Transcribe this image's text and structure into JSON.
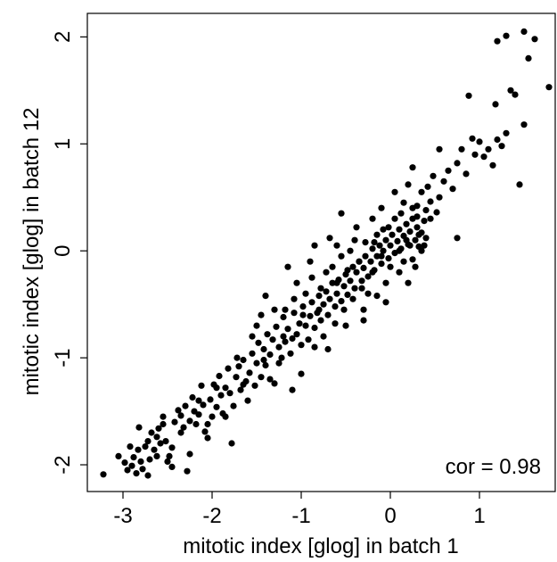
{
  "chart_data": {
    "type": "scatter",
    "title": "",
    "xlabel": "mitotic index [glog] in batch 1",
    "ylabel": "mitotic index [glog] in batch 12",
    "xlim": [
      -3.4,
      1.85
    ],
    "ylim": [
      -2.25,
      2.22
    ],
    "xticks": [
      -3,
      -2,
      -1,
      0,
      1
    ],
    "yticks": [
      -2,
      -1,
      0,
      1,
      2
    ],
    "xtick_labels": [
      "-3",
      "-2",
      "-1",
      "0",
      "1"
    ],
    "ytick_labels": [
      "-2",
      "-1",
      "0",
      "1",
      "2"
    ],
    "annotation": "cor = 0.98",
    "grid": false,
    "marker_color": "#000000",
    "points": [
      [
        -3.22,
        -2.09
      ],
      [
        -3.05,
        -1.92
      ],
      [
        -2.98,
        -1.98
      ],
      [
        -2.95,
        -2.05
      ],
      [
        -2.92,
        -1.83
      ],
      [
        -2.9,
        -2.01
      ],
      [
        -2.88,
        -1.93
      ],
      [
        -2.85,
        -2.08
      ],
      [
        -2.83,
        -1.86
      ],
      [
        -2.8,
        -1.97
      ],
      [
        -2.78,
        -2.04
      ],
      [
        -2.75,
        -1.83
      ],
      [
        -2.72,
        -1.78
      ],
      [
        -2.7,
        -1.95
      ],
      [
        -2.68,
        -1.7
      ],
      [
        -2.65,
        -1.86
      ],
      [
        -2.62,
        -1.74
      ],
      [
        -2.6,
        -1.66
      ],
      [
        -2.58,
        -1.8
      ],
      [
        -2.55,
        -1.62
      ],
      [
        -2.52,
        -1.78
      ],
      [
        -2.5,
        -1.97
      ],
      [
        -2.48,
        -1.92
      ],
      [
        -2.45,
        -1.84
      ],
      [
        -2.42,
        -1.6
      ],
      [
        -2.38,
        -1.49
      ],
      [
        -2.35,
        -1.54
      ],
      [
        -2.32,
        -1.65
      ],
      [
        -2.3,
        -1.45
      ],
      [
        -2.28,
        -2.06
      ],
      [
        -2.25,
        -1.59
      ],
      [
        -2.22,
        -1.37
      ],
      [
        -2.2,
        -1.5
      ],
      [
        -2.18,
        -1.62
      ],
      [
        -2.15,
        -1.53
      ],
      [
        -2.12,
        -1.26
      ],
      [
        -2.1,
        -1.44
      ],
      [
        -2.08,
        -1.69
      ],
      [
        -2.05,
        -1.62
      ],
      [
        -2.02,
        -1.39
      ],
      [
        -2.0,
        -1.55
      ],
      [
        -1.98,
        -1.25
      ],
      [
        -1.95,
        -1.46
      ],
      [
        -1.92,
        -1.17
      ],
      [
        -1.9,
        -1.35
      ],
      [
        -1.88,
        -1.52
      ],
      [
        -1.85,
        -1.28
      ],
      [
        -1.82,
        -1.1
      ],
      [
        -1.8,
        -1.33
      ],
      [
        -1.78,
        -1.8
      ],
      [
        -1.76,
        -1.45
      ],
      [
        -1.73,
        -1.18
      ],
      [
        -1.7,
        -1.08
      ],
      [
        -1.68,
        -1.3
      ],
      [
        -1.65,
        -1.02
      ],
      [
        -1.62,
        -1.22
      ],
      [
        -1.6,
        -1.4
      ],
      [
        -1.58,
        -1.14
      ],
      [
        -1.55,
        -0.96
      ],
      [
        -1.52,
        -1.26
      ],
      [
        -1.5,
        -1.05
      ],
      [
        -1.48,
        -0.86
      ],
      [
        -1.45,
        -1.18
      ],
      [
        -1.42,
        -0.92
      ],
      [
        -1.4,
        -1.07
      ],
      [
        -1.38,
        -0.78
      ],
      [
        -1.35,
        -0.97
      ],
      [
        -1.32,
        -0.83
      ],
      [
        -1.3,
        -1.24
      ],
      [
        -1.28,
        -0.71
      ],
      [
        -1.25,
        -0.9
      ],
      [
        -1.22,
        -1.0
      ],
      [
        -1.2,
        -0.62
      ],
      [
        -1.18,
        -0.85
      ],
      [
        -1.15,
        -0.73
      ],
      [
        -1.12,
        -0.96
      ],
      [
        -1.1,
        -0.82
      ],
      [
        -1.08,
        -0.58
      ],
      [
        -1.05,
        -0.78
      ],
      [
        -1.02,
        -0.68
      ],
      [
        -1.0,
        -0.88
      ],
      [
        -0.98,
        -0.52
      ],
      [
        -0.95,
        -0.7
      ],
      [
        -0.92,
        -0.83
      ],
      [
        -0.9,
        -0.61
      ],
      [
        -0.88,
        -0.48
      ],
      [
        -0.85,
        -0.72
      ],
      [
        -0.82,
        -0.58
      ],
      [
        -0.8,
        -0.42
      ],
      [
        -0.78,
        -0.65
      ],
      [
        -0.75,
        -0.5
      ],
      [
        -0.72,
        -0.38
      ],
      [
        -0.7,
        -0.6
      ],
      [
        -0.68,
        -0.45
      ],
      [
        -0.65,
        -0.3
      ],
      [
        -0.62,
        -0.52
      ],
      [
        -0.6,
        -0.4
      ],
      [
        -0.58,
        -0.27
      ],
      [
        -0.55,
        -0.47
      ],
      [
        -0.52,
        -0.33
      ],
      [
        -0.5,
        -0.22
      ],
      [
        -0.48,
        -0.41
      ],
      [
        -0.45,
        -0.28
      ],
      [
        -0.42,
        -0.15
      ],
      [
        -0.4,
        -0.35
      ],
      [
        -0.38,
        -0.2
      ],
      [
        -0.35,
        -0.1
      ],
      [
        -0.32,
        -0.28
      ],
      [
        -0.3,
        -0.16
      ],
      [
        -0.28,
        -0.05
      ],
      [
        -0.25,
        -0.24
      ],
      [
        -0.22,
        -0.1
      ],
      [
        -0.2,
        0.02
      ],
      [
        -0.18,
        -0.18
      ],
      [
        -0.15,
        -0.05
      ],
      [
        -0.12,
        0.05
      ],
      [
        -0.1,
        -0.12
      ],
      [
        -0.08,
        0.0
      ],
      [
        -0.05,
        0.1
      ],
      [
        -0.02,
        -0.07
      ],
      [
        0.0,
        0.05
      ],
      [
        0.02,
        0.15
      ],
      [
        0.05,
        -0.02
      ],
      [
        0.08,
        0.09
      ],
      [
        0.1,
        0.2
      ],
      [
        0.12,
        0.02
      ],
      [
        0.15,
        0.14
      ],
      [
        0.18,
        0.25
      ],
      [
        0.2,
        0.06
      ],
      [
        0.22,
        0.18
      ],
      [
        0.25,
        0.3
      ],
      [
        0.28,
        0.1
      ],
      [
        0.3,
        0.22
      ],
      [
        0.32,
        0.04
      ],
      [
        0.35,
        0.17
      ],
      [
        0.38,
        0.28
      ],
      [
        0.4,
        0.12
      ],
      [
        -0.95,
        -0.4
      ],
      [
        -0.72,
        -0.2
      ],
      [
        -0.55,
        -0.05
      ],
      [
        -0.4,
        0.1
      ],
      [
        -0.6,
        0.05
      ],
      [
        -0.2,
        0.3
      ],
      [
        0.05,
        0.55
      ],
      [
        -0.1,
        0.4
      ],
      [
        -0.7,
        -0.92
      ],
      [
        -0.5,
        -0.7
      ],
      [
        -0.3,
        -0.55
      ],
      [
        -0.15,
        -0.42
      ],
      [
        0.1,
        -0.2
      ],
      [
        0.25,
        -0.08
      ],
      [
        -1.05,
        -0.3
      ],
      [
        -1.4,
        -0.42
      ],
      [
        -1.45,
        -0.6
      ],
      [
        -1.15,
        -0.15
      ],
      [
        -0.85,
        0.05
      ],
      [
        -0.55,
        0.35
      ],
      [
        0.15,
        0.45
      ],
      [
        0.2,
        0.62
      ],
      [
        0.25,
        0.78
      ],
      [
        0.3,
        0.42
      ],
      [
        0.35,
        0.55
      ],
      [
        0.42,
        0.6
      ],
      [
        0.45,
        0.46
      ],
      [
        0.48,
        0.7
      ],
      [
        0.52,
        0.36
      ],
      [
        0.55,
        0.5
      ],
      [
        0.6,
        0.65
      ],
      [
        0.65,
        0.75
      ],
      [
        0.7,
        0.58
      ],
      [
        0.75,
        0.82
      ],
      [
        0.8,
        0.95
      ],
      [
        0.85,
        0.72
      ],
      [
        0.88,
        1.45
      ],
      [
        0.92,
        1.05
      ],
      [
        0.95,
        0.9
      ],
      [
        1.0,
        1.02
      ],
      [
        1.05,
        0.88
      ],
      [
        1.1,
        0.95
      ],
      [
        1.15,
        0.8
      ],
      [
        1.18,
        1.37
      ],
      [
        1.2,
        1.04
      ],
      [
        1.25,
        0.98
      ],
      [
        1.3,
        1.1
      ],
      [
        1.35,
        1.5
      ],
      [
        1.4,
        1.46
      ],
      [
        1.45,
        0.62
      ],
      [
        1.5,
        1.18
      ],
      [
        1.55,
        1.8
      ],
      [
        1.2,
        1.96
      ],
      [
        1.3,
        2.01
      ],
      [
        1.5,
        2.05
      ],
      [
        1.62,
        1.98
      ],
      [
        1.78,
        1.53
      ],
      [
        0.75,
        0.12
      ],
      [
        0.55,
        0.95
      ],
      [
        0.45,
        0.3
      ],
      [
        0.15,
        -0.1
      ],
      [
        -0.05,
        -0.3
      ],
      [
        -0.25,
        -0.4
      ],
      [
        -0.35,
        -0.1
      ],
      [
        -0.45,
        0.0
      ],
      [
        -0.15,
        0.15
      ],
      [
        0.05,
        0.3
      ],
      [
        0.25,
        0.4
      ],
      [
        0.35,
        0.0
      ],
      [
        0.28,
        -0.15
      ],
      [
        0.0,
        -0.15
      ],
      [
        -0.08,
        0.2
      ],
      [
        -0.28,
        0.08
      ],
      [
        -0.48,
        -0.18
      ],
      [
        -0.65,
        -0.15
      ],
      [
        -0.78,
        -0.35
      ],
      [
        -0.88,
        -0.25
      ],
      [
        -0.98,
        -0.6
      ],
      [
        -1.08,
        -0.45
      ],
      [
        -1.2,
        -0.8
      ],
      [
        -1.3,
        -0.55
      ],
      [
        -1.42,
        -1.02
      ],
      [
        -1.55,
        -0.8
      ],
      [
        -1.65,
        -1.25
      ],
      [
        -1.72,
        -1.0
      ],
      [
        -1.85,
        -1.55
      ],
      [
        -1.95,
        -1.28
      ],
      [
        -2.05,
        -1.75
      ],
      [
        -2.15,
        -1.4
      ],
      [
        -2.25,
        -1.9
      ],
      [
        -2.35,
        -1.7
      ],
      [
        -2.45,
        -2.02
      ],
      [
        -2.55,
        -1.55
      ],
      [
        -2.62,
        -1.92
      ],
      [
        -2.72,
        -2.1
      ],
      [
        -2.82,
        -1.65
      ],
      [
        -0.2,
        -0.2
      ],
      [
        -0.1,
        -0.05
      ],
      [
        0.1,
        0.0
      ],
      [
        0.18,
        0.1
      ],
      [
        0.3,
        0.32
      ],
      [
        0.38,
        0.05
      ],
      [
        -0.32,
        -0.35
      ],
      [
        -0.42,
        -0.45
      ],
      [
        -0.52,
        -0.55
      ],
      [
        -0.62,
        -0.68
      ],
      [
        -0.75,
        -0.8
      ],
      [
        -0.85,
        -0.9
      ],
      [
        -0.18,
        0.08
      ],
      [
        -0.02,
        0.22
      ],
      [
        0.12,
        0.35
      ],
      [
        0.22,
        0.05
      ],
      [
        0.32,
        0.15
      ],
      [
        -0.6,
        -0.3
      ],
      [
        -0.8,
        -0.55
      ],
      [
        -1.0,
        -1.15
      ],
      [
        -1.1,
        -1.3
      ],
      [
        -1.25,
        -1.05
      ],
      [
        -1.35,
        -1.2
      ],
      [
        -0.3,
        -0.65
      ],
      [
        0.4,
        0.38
      ],
      [
        0.2,
        -0.3
      ],
      [
        -0.05,
        -0.48
      ],
      [
        -0.38,
        0.22
      ],
      [
        -0.68,
        0.12
      ],
      [
        -0.9,
        -0.1
      ],
      [
        -1.18,
        -0.55
      ],
      [
        -1.5,
        -0.7
      ]
    ]
  }
}
